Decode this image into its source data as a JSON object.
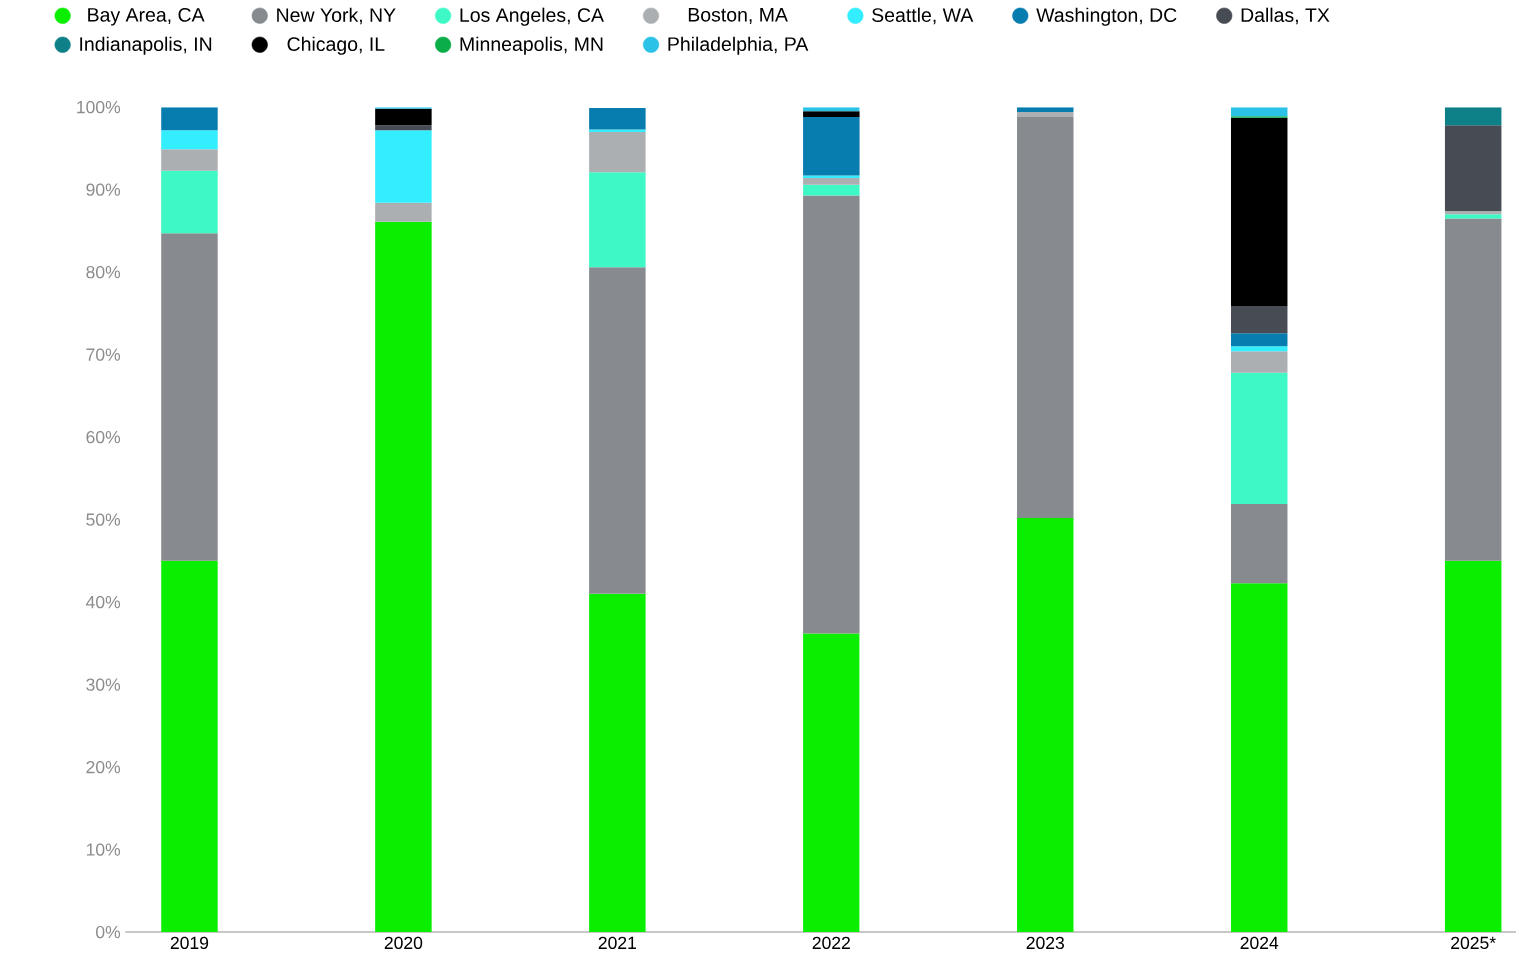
{
  "chart_data": {
    "type": "bar",
    "stacked": true,
    "legend": "top left",
    "categories": [
      "2019",
      "2020",
      "2021",
      "2022",
      "2023",
      "2024",
      "2025*"
    ],
    "ylim": [
      0,
      100
    ],
    "yticks": [
      {
        "value": 0,
        "label": "0%"
      },
      {
        "value": 10,
        "label": "10%"
      },
      {
        "value": 20,
        "label": "20%"
      },
      {
        "value": 30,
        "label": "30%"
      },
      {
        "value": 40,
        "label": "40%"
      },
      {
        "value": 50,
        "label": "50%"
      },
      {
        "value": 60,
        "label": "60%"
      },
      {
        "value": 70,
        "label": "70%"
      },
      {
        "value": 80,
        "label": "80%"
      },
      {
        "value": 90,
        "label": "90%"
      },
      {
        "value": 100,
        "label": "100%"
      }
    ],
    "series": [
      {
        "name": "Bay Area, CA",
        "color": "#0aee00",
        "values": [
          45.0,
          86.1,
          41.0,
          36.2,
          50.2,
          42.3,
          45.0
        ]
      },
      {
        "name": "New York, NY",
        "color": "#878a8f",
        "values": [
          39.7,
          null,
          39.6,
          53.1,
          48.6,
          9.6,
          41.5
        ]
      },
      {
        "name": "Los Angeles, CA",
        "color": "#3ef9c5",
        "values": [
          7.6,
          null,
          11.5,
          1.3,
          null,
          15.9,
          0.5
        ]
      },
      {
        "name": "Boston, MA",
        "color": "#acafb2",
        "values": [
          2.6,
          2.3,
          4.9,
          0.8,
          0.6,
          2.6,
          0.4
        ]
      },
      {
        "name": "Seattle, WA",
        "color": "#33eeff",
        "values": [
          2.3,
          8.8,
          0.3,
          0.3,
          null,
          0.6,
          null
        ]
      },
      {
        "name": "Washington, DC",
        "color": "#067caf",
        "values": [
          2.8,
          null,
          2.6,
          7.1,
          0.6,
          1.6,
          null
        ]
      },
      {
        "name": "Dallas, TX",
        "color": "#474b53",
        "values": [
          null,
          0.6,
          null,
          null,
          null,
          3.3,
          10.4
        ]
      },
      {
        "name": "Indianapolis, IN",
        "color": "#0e8088",
        "values": [
          null,
          null,
          null,
          null,
          null,
          null,
          2.2
        ]
      },
      {
        "name": "Chicago, IL",
        "color": "#000000",
        "values": [
          null,
          2.0,
          null,
          0.7,
          null,
          22.8,
          null
        ]
      },
      {
        "name": "Minneapolis, MN",
        "color": "#0aad48",
        "values": [
          null,
          null,
          null,
          null,
          null,
          0.2,
          null
        ]
      },
      {
        "name": "Philadelphia, PA",
        "color": "#2bc2e8",
        "values": [
          null,
          0.2,
          null,
          0.5,
          null,
          1.1,
          null
        ]
      }
    ]
  }
}
